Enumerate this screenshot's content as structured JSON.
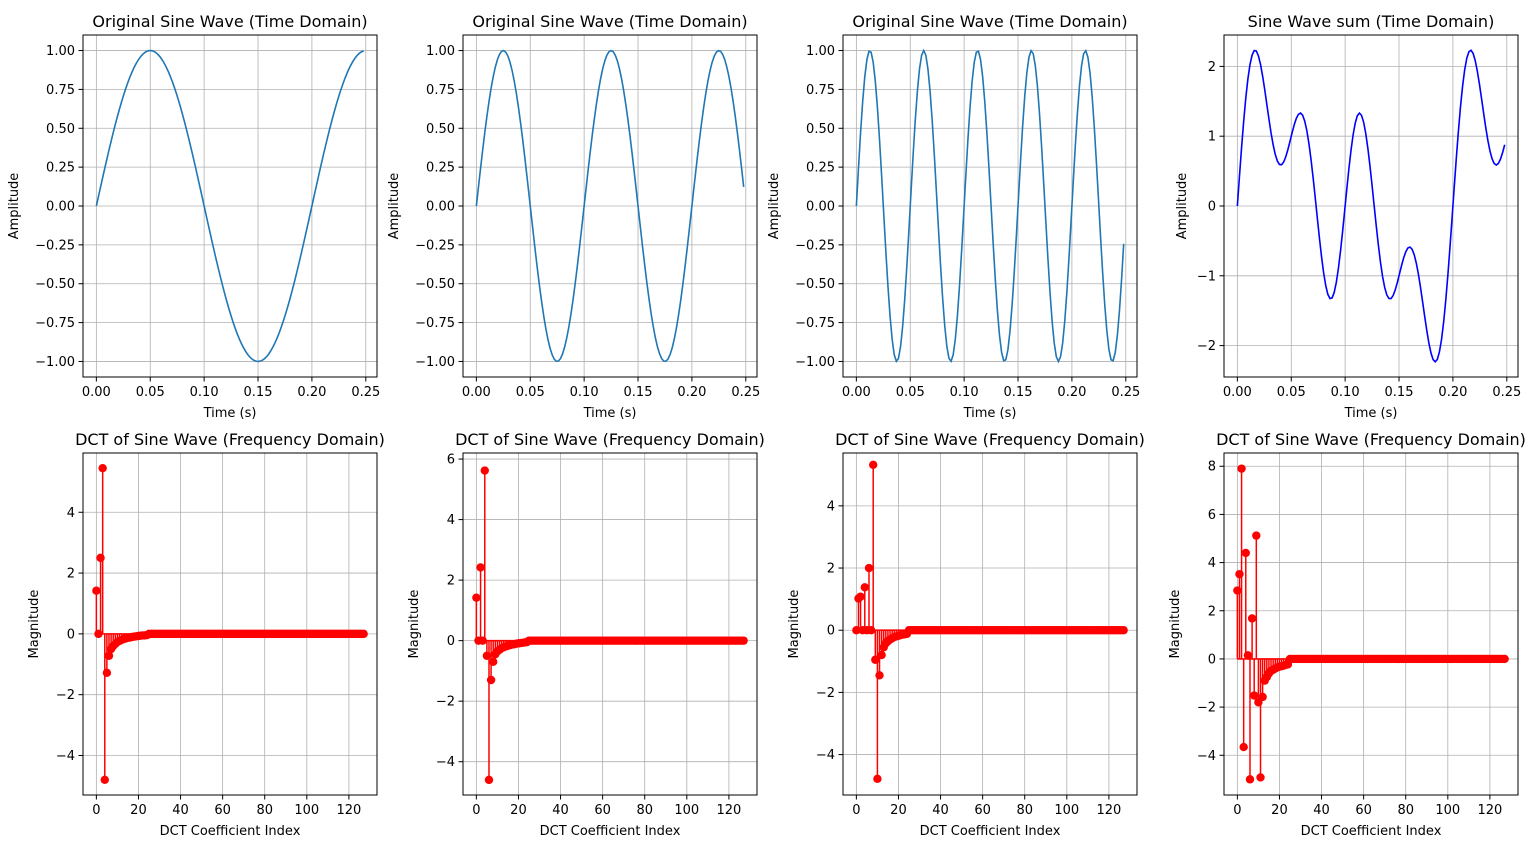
{
  "figure": {
    "background": "#ffffff",
    "grid_color": "#b0b0b0"
  },
  "chart_data": [
    {
      "id": "time1",
      "type": "line",
      "title": "Original Sine Wave (Time Domain)",
      "xlabel": "Time (s)",
      "ylabel": "Amplitude",
      "series": [
        {
          "function": "sine",
          "frequency_hz": 5,
          "amplitude": 1,
          "sample_rate_hz": 512,
          "samples": 128,
          "color": "#1f77b4"
        }
      ],
      "xlim": [
        -0.0124,
        0.2604
      ],
      "ylim": [
        -1.1,
        1.1
      ],
      "xticks": [
        0.0,
        0.05,
        0.1,
        0.15,
        0.2,
        0.25
      ],
      "xtick_labels": [
        "0.00",
        "0.05",
        "0.10",
        "0.15",
        "0.20",
        "0.25"
      ],
      "yticks": [
        -1.0,
        -0.75,
        -0.5,
        -0.25,
        0.0,
        0.25,
        0.5,
        0.75,
        1.0
      ],
      "ytick_labels": [
        "−1.00",
        "−0.75",
        "−0.50",
        "−0.25",
        "0.00",
        "0.25",
        "0.50",
        "0.75",
        "1.00"
      ],
      "grid": true
    },
    {
      "id": "time2",
      "type": "line",
      "title": "Original Sine Wave (Time Domain)",
      "xlabel": "Time (s)",
      "ylabel": "Amplitude",
      "series": [
        {
          "function": "sine",
          "frequency_hz": 10,
          "amplitude": 1,
          "sample_rate_hz": 512,
          "samples": 128,
          "color": "#1f77b4"
        }
      ],
      "xlim": [
        -0.0124,
        0.2604
      ],
      "ylim": [
        -1.1,
        1.1
      ],
      "xticks": [
        0.0,
        0.05,
        0.1,
        0.15,
        0.2,
        0.25
      ],
      "xtick_labels": [
        "0.00",
        "0.05",
        "0.10",
        "0.15",
        "0.20",
        "0.25"
      ],
      "yticks": [
        -1.0,
        -0.75,
        -0.5,
        -0.25,
        0.0,
        0.25,
        0.5,
        0.75,
        1.0
      ],
      "ytick_labels": [
        "−1.00",
        "−0.75",
        "−0.50",
        "−0.25",
        "0.00",
        "0.25",
        "0.50",
        "0.75",
        "1.00"
      ],
      "grid": true
    },
    {
      "id": "time3",
      "type": "line",
      "title": "Original Sine Wave (Time Domain)",
      "xlabel": "Time (s)",
      "ylabel": "Amplitude",
      "series": [
        {
          "function": "sine",
          "frequency_hz": 20,
          "amplitude": 1,
          "sample_rate_hz": 512,
          "samples": 128,
          "color": "#1f77b4"
        }
      ],
      "xlim": [
        -0.0124,
        0.2604
      ],
      "ylim": [
        -1.1,
        1.1
      ],
      "xticks": [
        0.0,
        0.05,
        0.1,
        0.15,
        0.2,
        0.25
      ],
      "xtick_labels": [
        "0.00",
        "0.05",
        "0.10",
        "0.15",
        "0.20",
        "0.25"
      ],
      "yticks": [
        -1.0,
        -0.75,
        -0.5,
        -0.25,
        0.0,
        0.25,
        0.5,
        0.75,
        1.0
      ],
      "ytick_labels": [
        "−1.00",
        "−0.75",
        "−0.50",
        "−0.25",
        "0.00",
        "0.25",
        "0.50",
        "0.75",
        "1.00"
      ],
      "grid": true
    },
    {
      "id": "time4",
      "type": "line",
      "title": "Sine Wave sum (Time Domain)",
      "xlabel": "Time (s)",
      "ylabel": "Amplitude",
      "series": [
        {
          "function": "sum of sines",
          "frequencies_hz": [
            5,
            10,
            20
          ],
          "amplitude": 1,
          "sample_rate_hz": 512,
          "samples": 128,
          "color": "#0000ff"
        }
      ],
      "xlim": [
        -0.0124,
        0.2604
      ],
      "ylim": [
        -2.45,
        2.45
      ],
      "xticks": [
        0.0,
        0.05,
        0.1,
        0.15,
        0.2,
        0.25
      ],
      "xtick_labels": [
        "0.00",
        "0.05",
        "0.10",
        "0.15",
        "0.20",
        "0.25"
      ],
      "yticks": [
        -2,
        -1,
        0,
        1,
        2
      ],
      "ytick_labels": [
        "−2",
        "−1",
        "0",
        "1",
        "2"
      ],
      "grid": true
    },
    {
      "id": "dct1",
      "type": "stem",
      "title": "DCT of Sine Wave (Frequency Domain)",
      "xlabel": "DCT Coefficient Index",
      "ylabel": "Magnitude",
      "color": "#ff0000",
      "x_range": [
        0,
        127
      ],
      "values_head": [
        1.42,
        0.0,
        2.5,
        5.45,
        -4.8,
        -1.28,
        -0.72,
        -0.5,
        -0.4,
        -0.33,
        -0.27,
        -0.23,
        -0.2,
        -0.17,
        -0.15,
        -0.13,
        -0.12,
        -0.1,
        -0.09,
        -0.08,
        -0.07,
        -0.06,
        -0.05,
        -0.05,
        -0.04
      ],
      "values_tail": 0.0,
      "xlim": [
        -6.35,
        133.35
      ],
      "ylim": [
        -5.3,
        5.95
      ],
      "xticks": [
        0,
        20,
        40,
        60,
        80,
        100,
        120
      ],
      "xtick_labels": [
        "0",
        "20",
        "40",
        "60",
        "80",
        "100",
        "120"
      ],
      "yticks": [
        -4,
        -2,
        0,
        2,
        4
      ],
      "ytick_labels": [
        "−4",
        "−2",
        "0",
        "2",
        "4"
      ],
      "grid": true
    },
    {
      "id": "dct2",
      "type": "stem",
      "title": "DCT of Sine Wave (Frequency Domain)",
      "xlabel": "DCT Coefficient Index",
      "ylabel": "Magnitude",
      "color": "#ff0000",
      "x_range": [
        0,
        127
      ],
      "values_head": [
        1.42,
        0.0,
        2.42,
        0.0,
        5.62,
        -0.5,
        -4.6,
        -1.3,
        -0.7,
        -0.45,
        -0.35,
        -0.3,
        -0.25,
        -0.22,
        -0.19,
        -0.17,
        -0.15,
        -0.13,
        -0.12,
        -0.1,
        -0.09,
        -0.08,
        -0.07,
        -0.06,
        -0.05
      ],
      "values_tail": 0.0,
      "xlim": [
        -6.35,
        133.35
      ],
      "ylim": [
        -5.1,
        6.2
      ],
      "xticks": [
        0,
        20,
        40,
        60,
        80,
        100,
        120
      ],
      "xtick_labels": [
        "0",
        "20",
        "40",
        "60",
        "80",
        "100",
        "120"
      ],
      "yticks": [
        -4,
        -2,
        0,
        2,
        4,
        6
      ],
      "ytick_labels": [
        "−4",
        "−2",
        "0",
        "2",
        "4",
        "6"
      ],
      "grid": true
    },
    {
      "id": "dct3",
      "type": "stem",
      "title": "DCT of Sine Wave (Frequency Domain)",
      "xlabel": "DCT Coefficient Index",
      "ylabel": "Magnitude",
      "color": "#ff0000",
      "x_range": [
        0,
        127
      ],
      "values_head": [
        0.0,
        1.02,
        1.08,
        0.0,
        1.38,
        0.0,
        2.0,
        0.0,
        5.32,
        -0.95,
        -4.78,
        -1.45,
        -0.8,
        -0.55,
        -0.42,
        -0.35,
        -0.3,
        -0.26,
        -0.22,
        -0.2,
        -0.18,
        -0.16,
        -0.14,
        -0.13,
        -0.12
      ],
      "values_tail": 0.0,
      "xlim": [
        -6.35,
        133.35
      ],
      "ylim": [
        -5.3,
        5.7
      ],
      "xticks": [
        0,
        20,
        40,
        60,
        80,
        100,
        120
      ],
      "xtick_labels": [
        "0",
        "20",
        "40",
        "60",
        "80",
        "100",
        "120"
      ],
      "yticks": [
        -4,
        -2,
        0,
        2,
        4
      ],
      "ytick_labels": [
        "−4",
        "−2",
        "0",
        "2",
        "4"
      ],
      "grid": true
    },
    {
      "id": "dct4",
      "type": "stem",
      "title": "DCT of Sine Wave (Frequency Domain)",
      "xlabel": "DCT Coefficient Index",
      "ylabel": "Magnitude",
      "color": "#ff0000",
      "x_range": [
        0,
        127
      ],
      "values_head": [
        2.84,
        3.52,
        7.9,
        -3.66,
        4.4,
        0.15,
        -5.0,
        1.68,
        -1.52,
        5.12,
        -1.8,
        -4.92,
        -1.58,
        -0.9,
        -0.75,
        -0.6,
        -0.5,
        -0.45,
        -0.4,
        -0.35,
        -0.32,
        -0.3,
        -0.28,
        -0.25,
        -0.23
      ],
      "values_tail": 0.0,
      "xlim": [
        -6.35,
        133.35
      ],
      "ylim": [
        -5.65,
        8.55
      ],
      "xticks": [
        0,
        20,
        40,
        60,
        80,
        100,
        120
      ],
      "xtick_labels": [
        "0",
        "20",
        "40",
        "60",
        "80",
        "100",
        "120"
      ],
      "yticks": [
        -4,
        -2,
        0,
        2,
        4,
        6,
        8
      ],
      "ytick_labels": [
        "−4",
        "−2",
        "0",
        "2",
        "4",
        "6",
        "8"
      ],
      "grid": true
    }
  ]
}
